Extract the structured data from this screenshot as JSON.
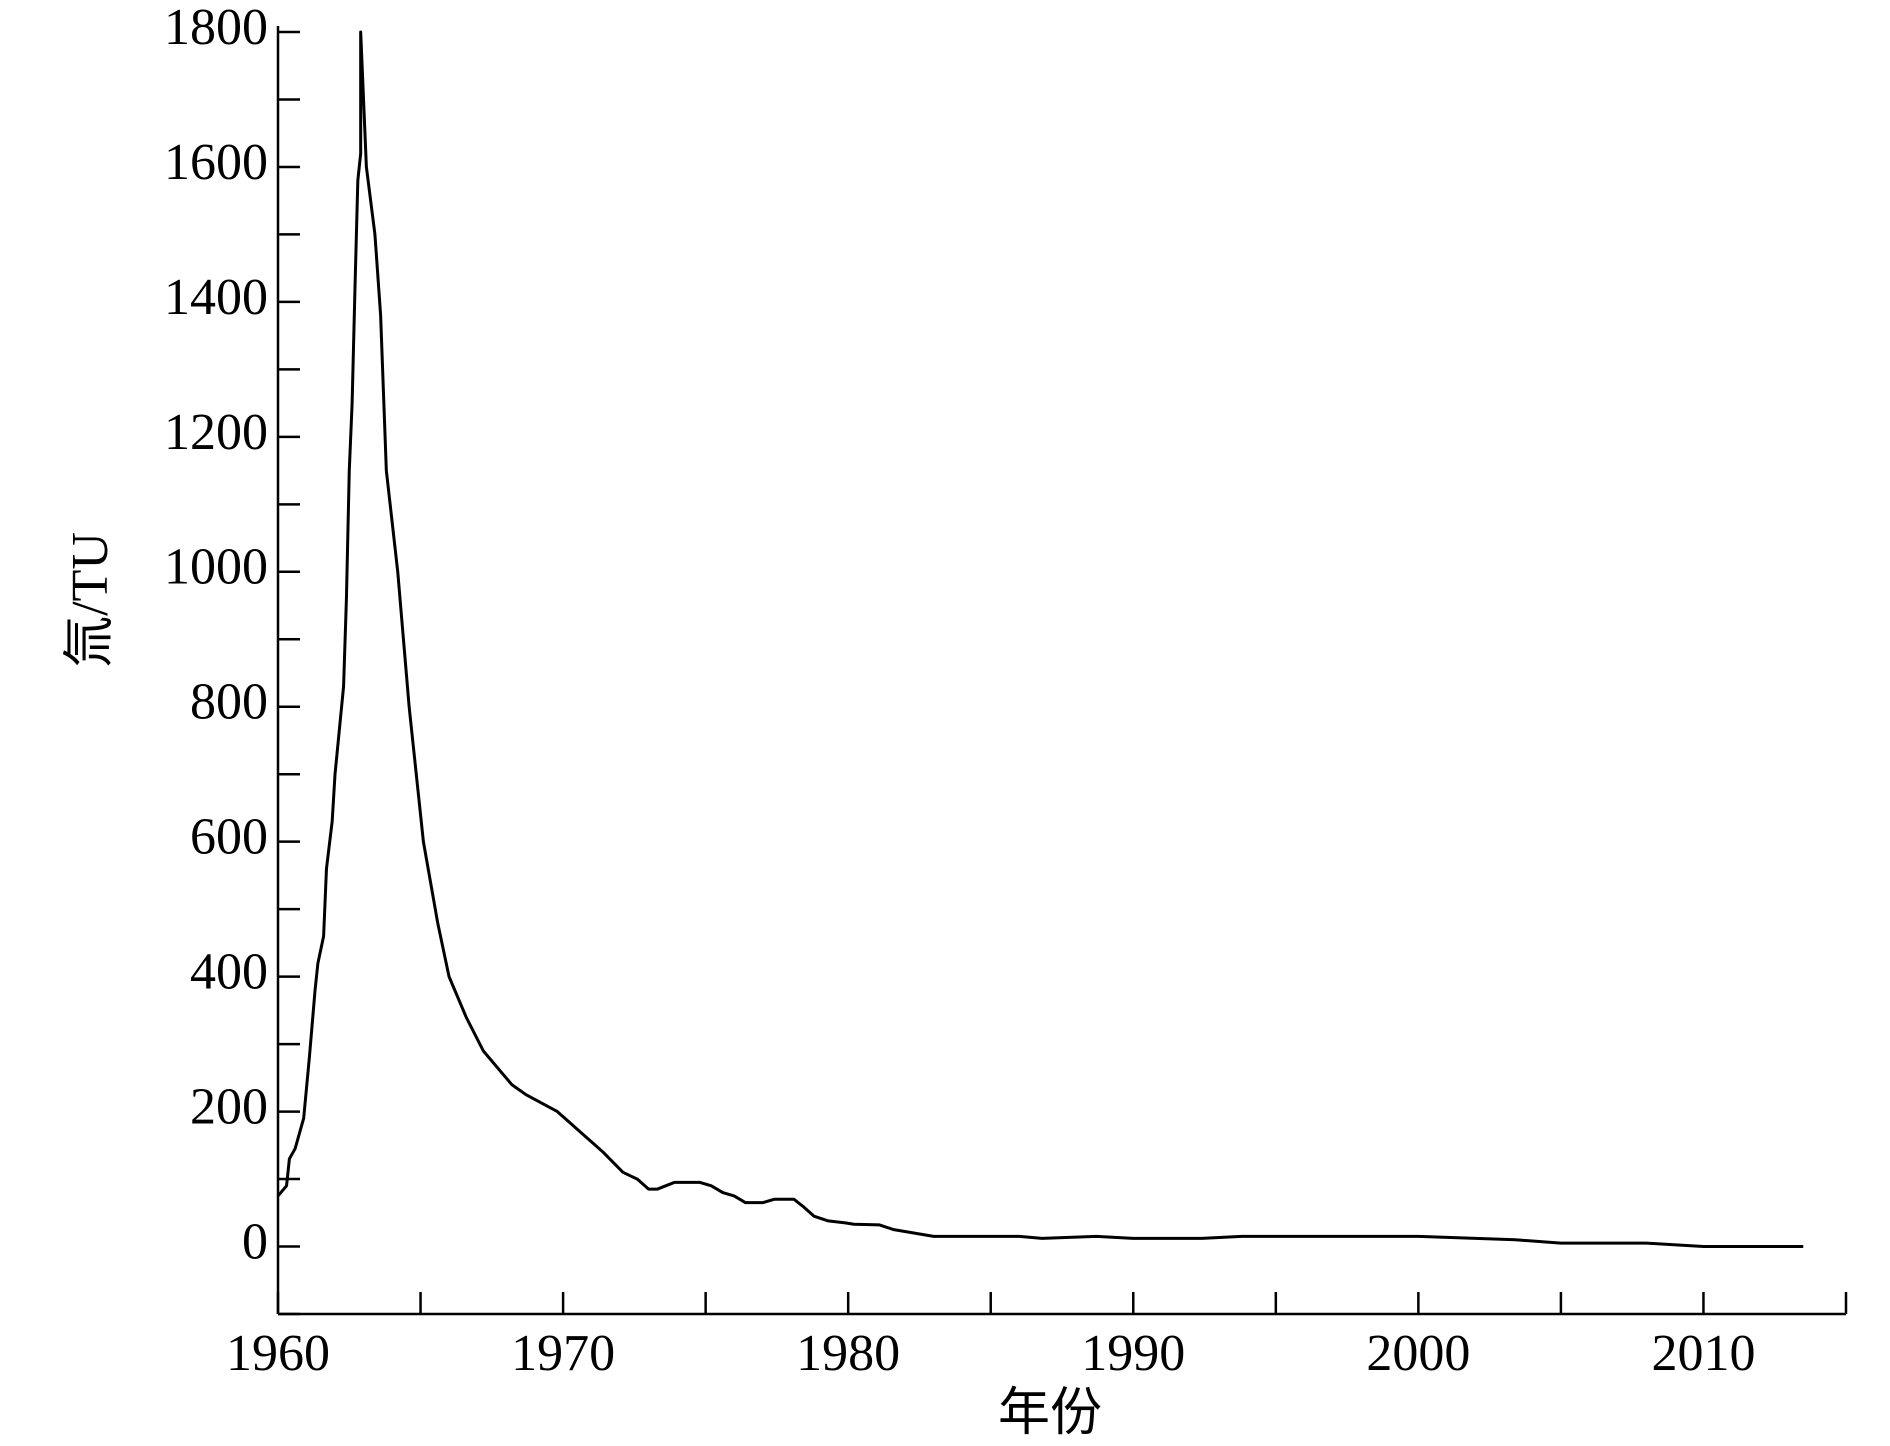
{
  "chart_data": {
    "type": "line",
    "x_label": "年份",
    "y_label": "氚/TU",
    "xlim": [
      1960,
      2015
    ],
    "ylim": [
      -100,
      1800
    ],
    "xticks": [
      1960,
      1970,
      1980,
      1990,
      2000,
      2010
    ],
    "xminorticks": [
      1965,
      1975,
      1985,
      1995,
      2005,
      2015
    ],
    "yticks": [
      0,
      200,
      400,
      600,
      800,
      1000,
      1200,
      1400,
      1600,
      1800
    ],
    "yminorticks": [
      -100,
      100,
      300,
      500,
      700,
      900,
      1100,
      1300,
      1500,
      1700
    ],
    "series": [
      {
        "color": "#000000",
        "x": [
          1960.0,
          1960.3,
          1960.4,
          1960.6,
          1960.9,
          1961.1,
          1961.2,
          1961.3,
          1961.4,
          1961.6,
          1961.7,
          1961.9,
          1962.0,
          1962.3,
          1962.4,
          1962.5,
          1962.6,
          1962.7,
          1962.8,
          1962.9,
          1962.9,
          1963.1,
          1963.4,
          1963.6,
          1963.8,
          1964.2,
          1964.6,
          1965.1,
          1965.6,
          1966.0,
          1966.6,
          1967.2,
          1968.2,
          1968.7,
          1969.8,
          1970.6,
          1971.4,
          1972.1,
          1972.6,
          1973.0,
          1973.3,
          1973.9,
          1974.8,
          1975.2,
          1975.6,
          1976.0,
          1976.4,
          1977.0,
          1977.4,
          1978.1,
          1978.4,
          1978.8,
          1979.3,
          1979.9,
          1980.2,
          1981.1,
          1981.6,
          1982.3,
          1983.0,
          1986.0,
          1986.8,
          1988.7,
          1990.0,
          1992.4,
          1993.8,
          2000.0,
          2003.4,
          2005.0,
          2008.0,
          2010.0,
          2013.5
        ],
        "values": [
          75,
          90,
          130,
          145,
          190,
          280,
          330,
          380,
          420,
          460,
          560,
          630,
          700,
          830,
          960,
          1150,
          1250,
          1420,
          1580,
          1620,
          1800,
          1600,
          1500,
          1380,
          1150,
          1000,
          800,
          600,
          480,
          400,
          340,
          290,
          240,
          225,
          200,
          170,
          140,
          110,
          100,
          85,
          85,
          95,
          95,
          90,
          80,
          75,
          65,
          65,
          70,
          70,
          60,
          45,
          38,
          35,
          33,
          32,
          25,
          20,
          15,
          15,
          12,
          15,
          12,
          12,
          15,
          15,
          10,
          5,
          5,
          0,
          0
        ]
      }
    ]
  }
}
